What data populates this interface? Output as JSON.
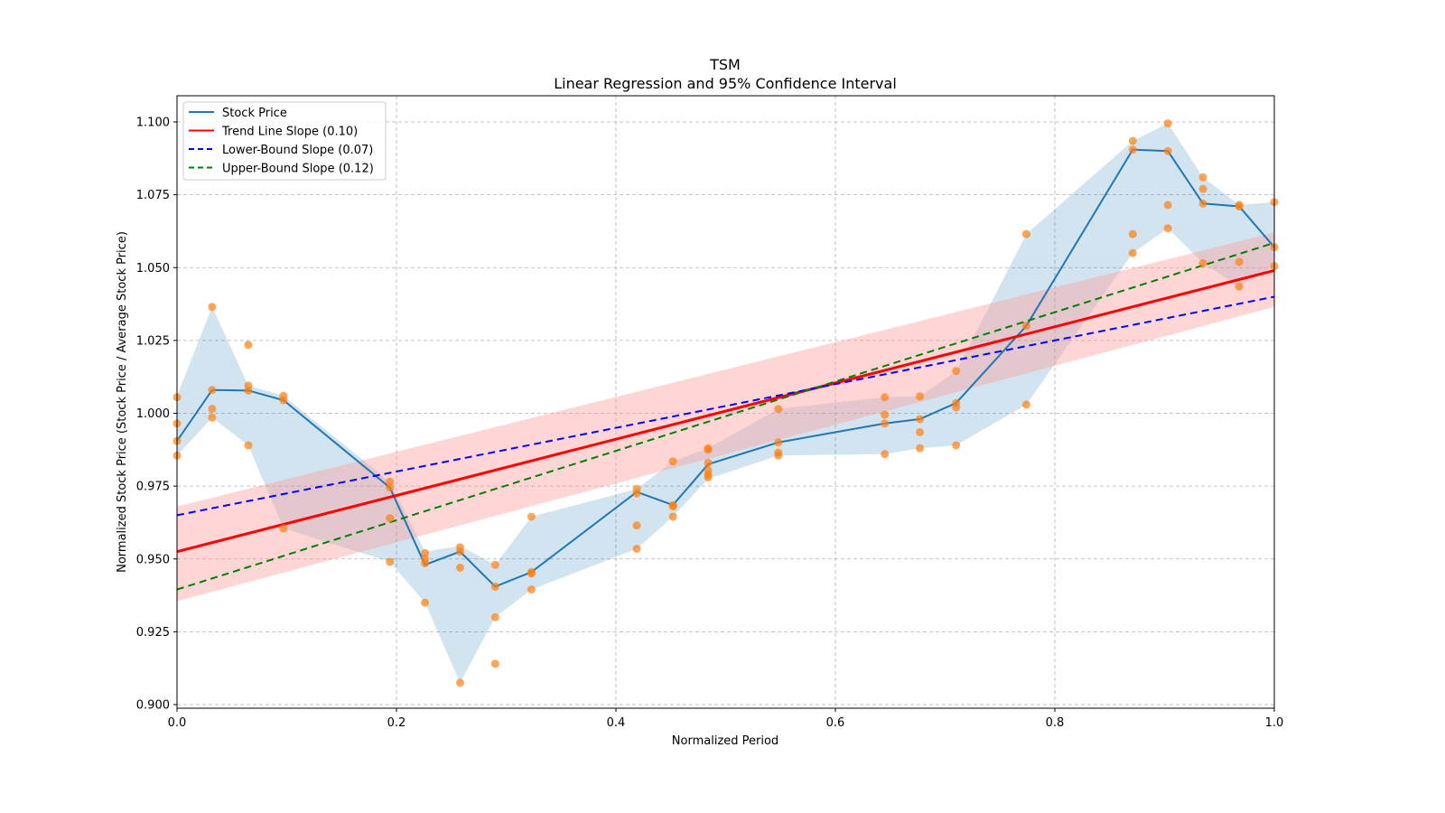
{
  "chart_data": {
    "type": "line",
    "title": "TSM",
    "subtitle": "Linear Regression and 95% Confidence Interval",
    "xlabel": "Normalized Period",
    "ylabel": "Normalized Stock Price (Stock Price / Average Stock Price)",
    "xlim": [
      0.0,
      1.0
    ],
    "ylim": [
      0.899,
      1.109
    ],
    "grid": true,
    "legend_position": "top-left",
    "x_ticks": [
      "0.0",
      "0.2",
      "0.4",
      "0.6",
      "0.8",
      "1.0"
    ],
    "x_tick_values": [
      0.0,
      0.2,
      0.4,
      0.6,
      0.8,
      1.0
    ],
    "y_ticks": [
      "0.900",
      "0.925",
      "0.950",
      "0.975",
      "1.000",
      "1.025",
      "1.050",
      "1.075",
      "1.100"
    ],
    "y_tick_values": [
      0.9,
      0.925,
      0.95,
      0.975,
      1.0,
      1.025,
      1.05,
      1.075,
      1.1
    ],
    "colors": {
      "stock": "#1f77b4",
      "stock_band": "#1f77b4",
      "scatter": "#ff7f0e",
      "trend": "#ff0000",
      "trend_band": "#ff9999",
      "lower": "#0000ff",
      "upper": "#008000"
    },
    "legend": [
      {
        "label": "Stock Price",
        "style": "solid",
        "color_key": "stock"
      },
      {
        "label": "Trend Line Slope (0.10)",
        "style": "solid",
        "color_key": "trend"
      },
      {
        "label": "Lower-Bound Slope (0.07)",
        "style": "dashed",
        "color_key": "lower"
      },
      {
        "label": "Upper-Bound Slope (0.12)",
        "style": "dashed",
        "color_key": "upper"
      }
    ],
    "stock_price": {
      "name": "Stock Price",
      "x": [
        0.0,
        0.032,
        0.065,
        0.097,
        0.194,
        0.226,
        0.258,
        0.29,
        0.323,
        0.419,
        0.452,
        0.484,
        0.548,
        0.645,
        0.677,
        0.71,
        0.774,
        0.871,
        0.903,
        0.935,
        0.968,
        1.0
      ],
      "y": [
        0.9905,
        1.008,
        1.0078,
        1.0045,
        0.9745,
        0.948,
        0.9525,
        0.9405,
        0.9455,
        0.973,
        0.9685,
        0.9825,
        0.99,
        0.9965,
        0.998,
        1.0035,
        1.03,
        1.0905,
        1.09,
        1.072,
        1.071,
        1.057
      ],
      "band_upper": [
        1.006,
        1.0365,
        1.0095,
        1.006,
        0.9765,
        0.9525,
        0.9545,
        0.948,
        0.9645,
        0.974,
        0.9835,
        0.988,
        1.0015,
        1.0055,
        1.0058,
        1.0145,
        1.0615,
        1.0935,
        1.0995,
        1.081,
        1.0715,
        1.0725
      ],
      "band_lower": [
        0.9855,
        0.9985,
        0.989,
        0.9605,
        0.949,
        0.935,
        0.9075,
        0.93,
        0.9395,
        0.9535,
        0.9645,
        0.9775,
        0.9855,
        0.986,
        0.988,
        0.989,
        1.003,
        1.055,
        1.0635,
        1.0515,
        1.0435,
        1.0505
      ]
    },
    "scatter": {
      "name": "Observations",
      "points": [
        [
          0.0,
          1.0055
        ],
        [
          0.0,
          0.9965
        ],
        [
          0.0,
          0.9905
        ],
        [
          0.0,
          0.9855
        ],
        [
          0.032,
          1.0365
        ],
        [
          0.032,
          1.008
        ],
        [
          0.032,
          1.0015
        ],
        [
          0.032,
          0.9985
        ],
        [
          0.065,
          1.0235
        ],
        [
          0.065,
          1.0095
        ],
        [
          0.065,
          1.0078
        ],
        [
          0.065,
          0.989
        ],
        [
          0.097,
          1.006
        ],
        [
          0.097,
          1.0045
        ],
        [
          0.097,
          0.9605
        ],
        [
          0.194,
          0.9765
        ],
        [
          0.194,
          0.9745
        ],
        [
          0.194,
          0.964
        ],
        [
          0.194,
          0.949
        ],
        [
          0.226,
          0.952
        ],
        [
          0.226,
          0.95
        ],
        [
          0.226,
          0.9485
        ],
        [
          0.226,
          0.935
        ],
        [
          0.258,
          0.954
        ],
        [
          0.258,
          0.9525
        ],
        [
          0.258,
          0.947
        ],
        [
          0.258,
          0.9075
        ],
        [
          0.29,
          0.948
        ],
        [
          0.29,
          0.9405
        ],
        [
          0.29,
          0.93
        ],
        [
          0.29,
          0.914
        ],
        [
          0.323,
          0.9645
        ],
        [
          0.323,
          0.9455
        ],
        [
          0.323,
          0.945
        ],
        [
          0.323,
          0.9395
        ],
        [
          0.419,
          0.974
        ],
        [
          0.419,
          0.9725
        ],
        [
          0.419,
          0.9615
        ],
        [
          0.419,
          0.9535
        ],
        [
          0.452,
          0.9835
        ],
        [
          0.452,
          0.968
        ],
        [
          0.452,
          0.9685
        ],
        [
          0.452,
          0.9645
        ],
        [
          0.484,
          0.988
        ],
        [
          0.484,
          0.9875
        ],
        [
          0.484,
          0.983
        ],
        [
          0.484,
          0.9805
        ],
        [
          0.484,
          0.979
        ],
        [
          0.484,
          0.978
        ],
        [
          0.548,
          1.0015
        ],
        [
          0.548,
          0.99
        ],
        [
          0.548,
          0.9865
        ],
        [
          0.548,
          0.9855
        ],
        [
          0.645,
          1.0055
        ],
        [
          0.645,
          0.9995
        ],
        [
          0.645,
          0.9965
        ],
        [
          0.645,
          0.986
        ],
        [
          0.677,
          1.0058
        ],
        [
          0.677,
          0.998
        ],
        [
          0.677,
          0.9935
        ],
        [
          0.677,
          0.988
        ],
        [
          0.71,
          1.0145
        ],
        [
          0.71,
          1.0035
        ],
        [
          0.71,
          1.002
        ],
        [
          0.71,
          0.989
        ],
        [
          0.774,
          1.0615
        ],
        [
          0.774,
          1.03
        ],
        [
          0.774,
          1.003
        ],
        [
          0.871,
          1.0935
        ],
        [
          0.871,
          1.0905
        ],
        [
          0.871,
          1.0615
        ],
        [
          0.871,
          1.055
        ],
        [
          0.903,
          1.0995
        ],
        [
          0.903,
          1.09
        ],
        [
          0.903,
          1.0715
        ],
        [
          0.903,
          1.0635
        ],
        [
          0.935,
          1.081
        ],
        [
          0.935,
          1.077
        ],
        [
          0.935,
          1.072
        ],
        [
          0.935,
          1.0515
        ],
        [
          0.968,
          1.0715
        ],
        [
          0.968,
          1.071
        ],
        [
          0.968,
          1.052
        ],
        [
          0.968,
          1.0435
        ],
        [
          1.0,
          1.0725
        ],
        [
          1.0,
          1.057
        ],
        [
          1.0,
          1.0505
        ]
      ]
    },
    "trend_line": {
      "name": "Trend Line Slope (0.10)",
      "slope": 0.1,
      "x": [
        0.0,
        1.0
      ],
      "y": [
        0.9525,
        1.049
      ]
    },
    "trend_band": {
      "x": [
        0.0,
        1.0
      ],
      "upper": [
        0.968,
        1.062
      ],
      "lower": [
        0.9355,
        1.0365
      ]
    },
    "lower_bound_line": {
      "name": "Lower-Bound Slope (0.07)",
      "slope": 0.07,
      "x": [
        0.0,
        1.0
      ],
      "y": [
        0.965,
        1.04
      ]
    },
    "upper_bound_line": {
      "name": "Upper-Bound Slope (0.12)",
      "slope": 0.12,
      "x": [
        0.0,
        1.0
      ],
      "y": [
        0.9395,
        1.0585
      ]
    }
  }
}
